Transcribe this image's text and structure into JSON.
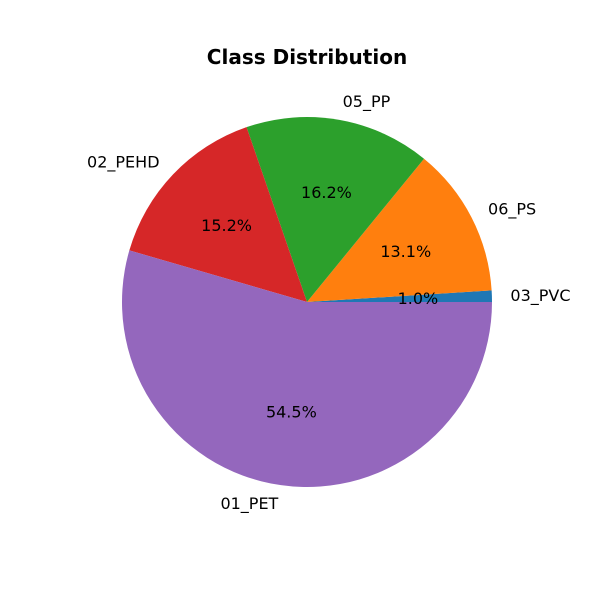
{
  "chart_data": {
    "type": "pie",
    "title": "Class Distribution",
    "start_angle_deg": 0,
    "direction": "counterclockwise",
    "slices": [
      {
        "label": "03_PVC",
        "value": 1.0,
        "pct_label": "1.0%",
        "color": "#1f77b4"
      },
      {
        "label": "06_PS",
        "value": 13.1,
        "pct_label": "13.1%",
        "color": "#ff7f0e"
      },
      {
        "label": "05_PP",
        "value": 16.2,
        "pct_label": "16.2%",
        "color": "#2ca02c"
      },
      {
        "label": "02_PEHD",
        "value": 15.2,
        "pct_label": "15.2%",
        "color": "#d62728"
      },
      {
        "label": "01_PET",
        "value": 54.5,
        "pct_label": "54.5%",
        "color": "#9467bd"
      }
    ]
  }
}
